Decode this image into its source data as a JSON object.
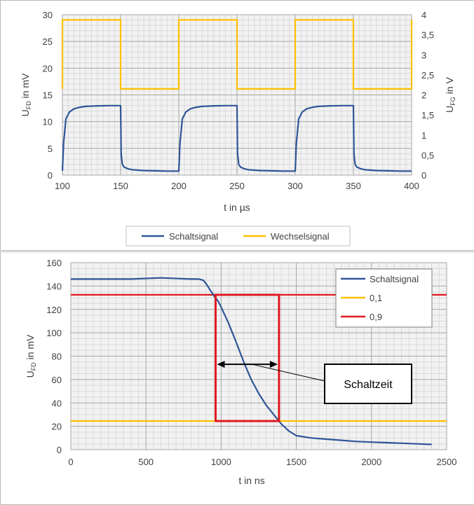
{
  "colors": {
    "schaltsignal": "#2f5597",
    "wechselsignal": "#ffc000",
    "level_01": "#ffc000",
    "level_09": "#e0191f",
    "grid_major": "#a6a6a6",
    "grid_minor": "#d9d9d9",
    "plot_bg": "#f2f2f2"
  },
  "chart_data": [
    {
      "type": "line",
      "xlabel": "t in µs",
      "ylabel_main": "U",
      "ylabel_sub": "FD",
      "ylabel_rest": " in mV",
      "y2label_main": "U",
      "y2label_sub": "FG",
      "y2label_rest": " in V",
      "xlim": [
        100,
        400
      ],
      "ylim": [
        0,
        30
      ],
      "y2lim": [
        0,
        4
      ],
      "x_ticks": [
        "100",
        "150",
        "200",
        "250",
        "300",
        "350",
        "400"
      ],
      "y_ticks": [
        "0",
        "5",
        "10",
        "15",
        "20",
        "25",
        "30"
      ],
      "y2_ticks": [
        "0",
        "0,5",
        "1",
        "1,5",
        "2",
        "2,5",
        "3",
        "3,5",
        "4"
      ],
      "grid": true,
      "legend_position": "bottom",
      "series": [
        {
          "name": "Schaltsignal",
          "axis": "left",
          "x": [
            100,
            101,
            103,
            106,
            110,
            115,
            120,
            130,
            140,
            150,
            150.5,
            151.5,
            153,
            156,
            160,
            170,
            180,
            190,
            200,
            201,
            203,
            206,
            210,
            215,
            220,
            230,
            240,
            250,
            250.5,
            251.5,
            253,
            256,
            260,
            270,
            280,
            290,
            300,
            301,
            303,
            306,
            310,
            315,
            320,
            330,
            340,
            350,
            350.5,
            351.5,
            353,
            356,
            360,
            370,
            380,
            390,
            400
          ],
          "values": [
            0.8,
            6.0,
            10.5,
            11.8,
            12.4,
            12.7,
            12.85,
            12.95,
            13.0,
            13.0,
            4.0,
            2.0,
            1.5,
            1.2,
            1.0,
            0.85,
            0.8,
            0.75,
            0.75,
            6.0,
            10.5,
            11.8,
            12.4,
            12.7,
            12.85,
            12.95,
            13.0,
            13.0,
            4.0,
            2.0,
            1.5,
            1.2,
            1.0,
            0.85,
            0.8,
            0.75,
            0.75,
            6.0,
            10.5,
            11.8,
            12.4,
            12.7,
            12.85,
            12.95,
            13.0,
            13.0,
            4.0,
            2.0,
            1.5,
            1.2,
            1.0,
            0.85,
            0.8,
            0.75,
            0.75
          ]
        },
        {
          "name": "Wechselsignal",
          "axis": "right",
          "x": [
            100,
            100,
            150,
            150,
            200,
            200,
            250,
            250,
            300,
            300,
            350,
            350,
            400,
            400
          ],
          "values": [
            2.15,
            3.87,
            3.87,
            2.15,
            2.15,
            3.87,
            3.87,
            2.15,
            2.15,
            3.87,
            3.87,
            2.15,
            2.15,
            3.87
          ]
        }
      ]
    },
    {
      "type": "line",
      "xlabel": "t in ns",
      "ylabel_main": "U",
      "ylabel_sub": "FD",
      "ylabel_rest": " in mV",
      "xlim": [
        0,
        2500
      ],
      "ylim": [
        0,
        160
      ],
      "x_ticks": [
        "0",
        "500",
        "1000",
        "1500",
        "2000",
        "2500"
      ],
      "y_ticks": [
        "0",
        "20",
        "40",
        "60",
        "80",
        "100",
        "120",
        "140",
        "160"
      ],
      "grid": true,
      "legend_position": "top-right",
      "series": [
        {
          "name": "Schaltsignal",
          "x": [
            0,
            200,
            400,
            600,
            800,
            850,
            880,
            900,
            920,
            950,
            980,
            1000,
            1050,
            1100,
            1150,
            1200,
            1250,
            1300,
            1350,
            1400,
            1450,
            1500,
            1600,
            1700,
            1800,
            1900,
            2000,
            2100,
            2200,
            2300,
            2400
          ],
          "values": [
            146,
            146,
            146,
            147,
            146,
            146,
            145,
            142,
            138,
            132,
            127,
            122,
            108,
            92,
            75,
            60,
            48,
            38,
            30,
            22,
            16,
            12,
            10,
            9,
            8,
            7,
            6.5,
            6,
            5.5,
            5,
            4.5
          ]
        },
        {
          "name": "0,1",
          "x": [
            0,
            2500
          ],
          "values": [
            24.5,
            24.5
          ]
        },
        {
          "name": "0,9",
          "x": [
            0,
            2500
          ],
          "values": [
            132.5,
            132.5
          ]
        }
      ],
      "rectangle": {
        "x0": 963,
        "x1": 1385,
        "y0": 24.5,
        "y1": 132.5
      },
      "arrow": {
        "x0": 963,
        "x1": 1385,
        "y": 73
      },
      "annotation": {
        "text": "Schaltzeit",
        "target_x": 1205,
        "target_y": 73,
        "box_x": 1700,
        "box_y": 56
      }
    }
  ]
}
